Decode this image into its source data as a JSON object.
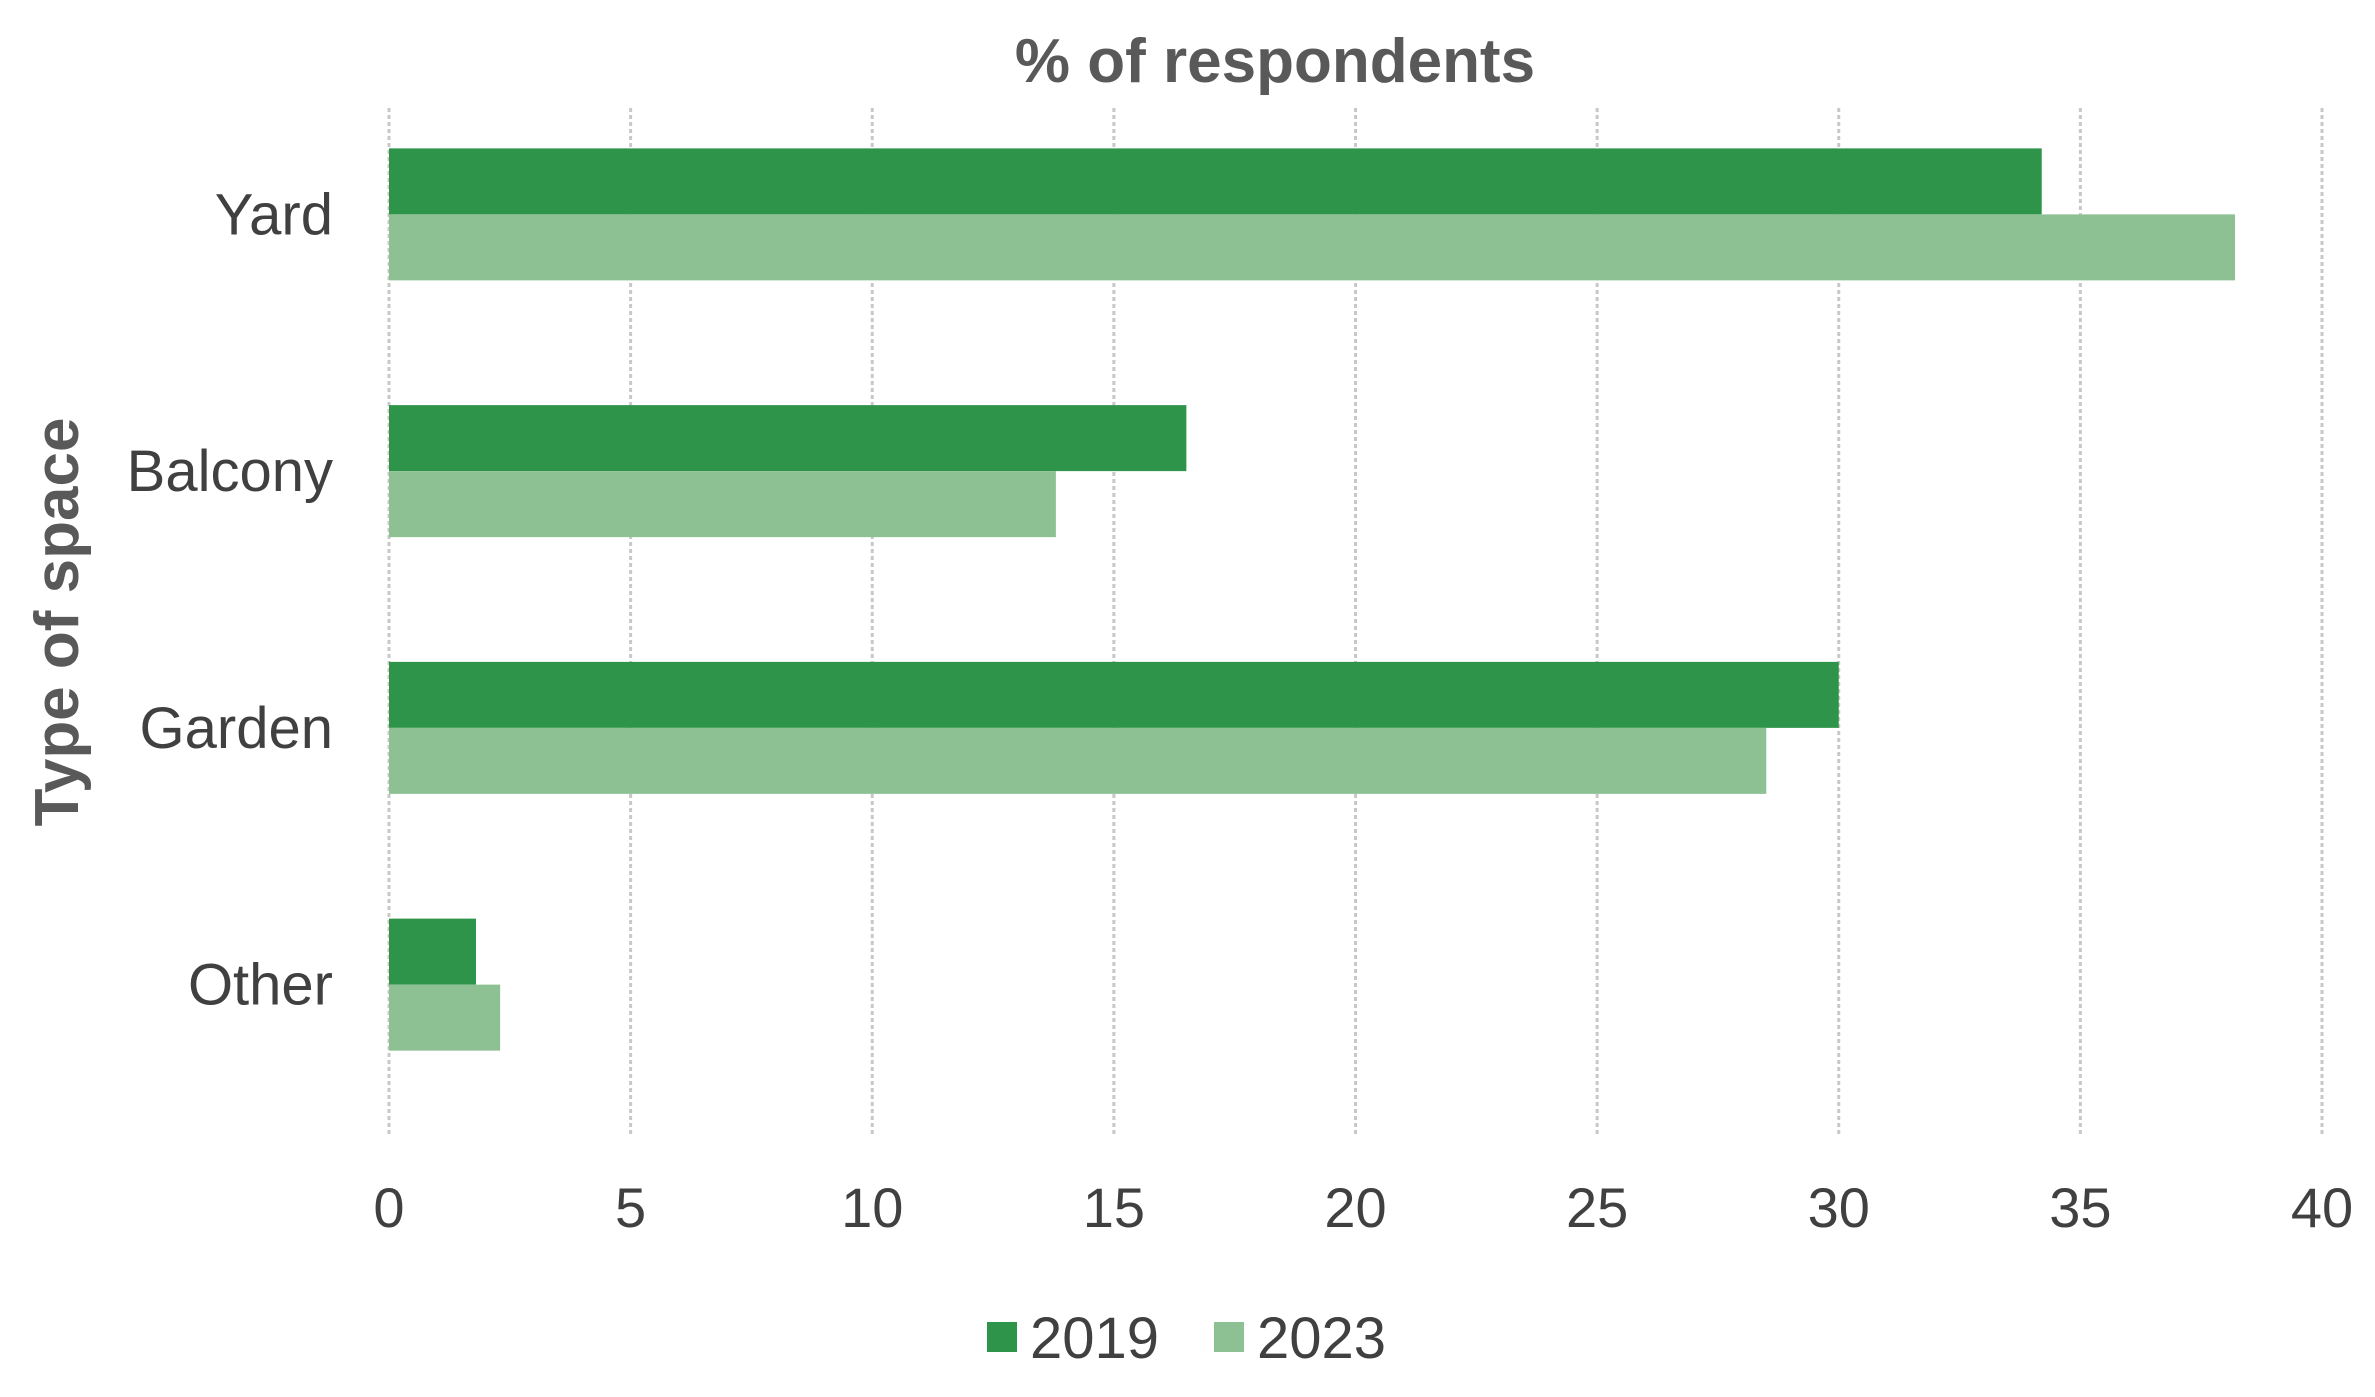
{
  "chart_data": {
    "type": "bar",
    "orientation": "horizontal",
    "title": "% of respondents",
    "xlabel": "",
    "ylabel": "Type of space",
    "categories": [
      "Yard",
      "Balcony",
      "Garden",
      "Other"
    ],
    "series": [
      {
        "name": "2019",
        "color": "#2e9449",
        "values": [
          34.2,
          16.5,
          30.0,
          1.8
        ]
      },
      {
        "name": "2023",
        "color": "#8dc194",
        "values": [
          38.2,
          13.8,
          28.5,
          2.3
        ]
      }
    ],
    "xlim": [
      0,
      40
    ],
    "xticks": [
      "0",
      "5",
      "10",
      "15",
      "20",
      "25",
      "30",
      "35",
      "40"
    ],
    "grid": true,
    "legend_position": "bottom"
  }
}
